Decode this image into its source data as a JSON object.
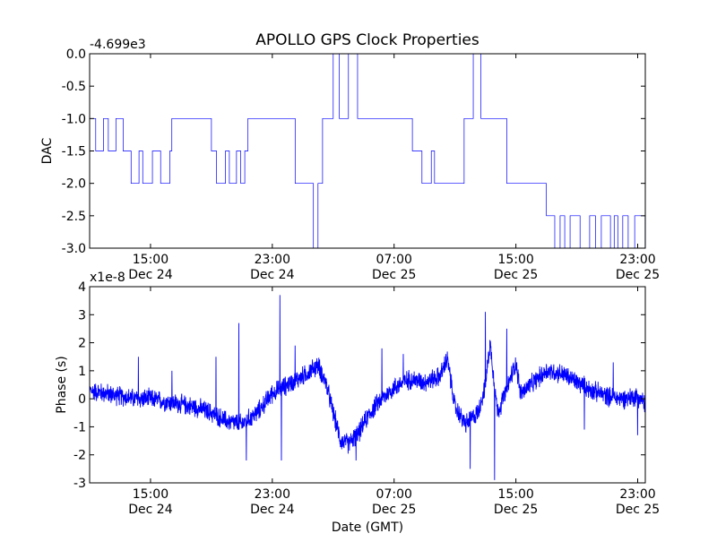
{
  "figure": {
    "title": "APOLLO GPS Clock Properties",
    "xlabel": "Date (GMT)"
  },
  "colors": {
    "series": "#0000ff",
    "axes": "#000000",
    "background": "#ffffff"
  },
  "chart_data": [
    {
      "type": "line",
      "ylabel": "DAC",
      "offset_text": "-4.699e3",
      "ylim": [
        -3.0,
        0.0
      ],
      "yticks": [
        "0.0",
        "-0.5",
        "-1.0",
        "-1.5",
        "-2.0",
        "-2.5",
        "-3.0"
      ],
      "xlim_hours": [
        11.0,
        47.5
      ],
      "xticks": [
        {
          "time": "15:00",
          "date": "Dec 24"
        },
        {
          "time": "23:00",
          "date": "Dec 24"
        },
        {
          "time": "07:00",
          "date": "Dec 25"
        },
        {
          "time": "15:00",
          "date": "Dec 25"
        },
        {
          "time": "23:00",
          "date": "Dec 25"
        }
      ],
      "series": [
        {
          "segments": [
            {
              "from": 11.0,
              "to": 11.4,
              "level": -1.0
            },
            {
              "from": 11.4,
              "to": 13.2,
              "level": -1.5,
              "toggle": -1.0
            },
            {
              "from": 13.2,
              "to": 16.4,
              "level": -1.5,
              "toggle": -2.0
            },
            {
              "from": 16.4,
              "to": 19.0,
              "level": -1.0
            },
            {
              "from": 19.0,
              "to": 21.4,
              "level": -1.5,
              "toggle": -2.0
            },
            {
              "from": 21.4,
              "to": 24.5,
              "level": -1.0
            },
            {
              "from": 24.5,
              "to": 25.7,
              "level": -2.0
            },
            {
              "from": 25.7,
              "to": 26.0,
              "level": -3.0
            },
            {
              "from": 26.0,
              "to": 26.3,
              "level": -2.0
            },
            {
              "from": 26.3,
              "to": 27.0,
              "level": -1.0
            },
            {
              "from": 27.0,
              "to": 27.4,
              "level": 0.0
            },
            {
              "from": 27.4,
              "to": 28.0,
              "level": -1.0
            },
            {
              "from": 28.0,
              "to": 28.6,
              "level": 0.0
            },
            {
              "from": 28.6,
              "to": 32.2,
              "level": -1.0
            },
            {
              "from": 32.2,
              "to": 34.0,
              "level": -1.5,
              "toggle": -2.0
            },
            {
              "from": 34.0,
              "to": 35.6,
              "level": -2.0
            },
            {
              "from": 35.6,
              "to": 36.2,
              "level": -1.0
            },
            {
              "from": 36.2,
              "to": 36.7,
              "level": 0.0
            },
            {
              "from": 36.7,
              "to": 38.4,
              "level": -1.0
            },
            {
              "from": 38.4,
              "to": 41.0,
              "level": -2.0
            },
            {
              "from": 41.0,
              "to": 47.5,
              "level": -2.5,
              "toggle": -3.0
            }
          ]
        }
      ]
    },
    {
      "type": "line",
      "ylabel": "Phase (s)",
      "offset_text": "x1e-8",
      "ylim": [
        -3,
        4
      ],
      "yticks": [
        "4",
        "3",
        "2",
        "1",
        "0",
        "-1",
        "-2",
        "-3"
      ],
      "xlim_hours": [
        11.0,
        47.5
      ],
      "xticks": [
        {
          "time": "15:00",
          "date": "Dec 24"
        },
        {
          "time": "23:00",
          "date": "Dec 24"
        },
        {
          "time": "07:00",
          "date": "Dec 25"
        },
        {
          "time": "15:00",
          "date": "Dec 25"
        },
        {
          "time": "23:00",
          "date": "Dec 25"
        }
      ],
      "series": [
        {
          "trend": [
            [
              11.0,
              0.3
            ],
            [
              12.0,
              0.2
            ],
            [
              13.0,
              0.1
            ],
            [
              14.0,
              0.0
            ],
            [
              15.0,
              0.0
            ],
            [
              16.0,
              -0.1
            ],
            [
              17.0,
              -0.2
            ],
            [
              18.0,
              -0.3
            ],
            [
              19.0,
              -0.5
            ],
            [
              20.0,
              -0.8
            ],
            [
              21.0,
              -0.9
            ],
            [
              22.0,
              -0.5
            ],
            [
              23.0,
              0.2
            ],
            [
              24.0,
              0.5
            ],
            [
              25.0,
              0.8
            ],
            [
              25.5,
              1.0
            ],
            [
              26.0,
              1.2
            ],
            [
              26.5,
              0.6
            ],
            [
              27.0,
              -0.5
            ],
            [
              27.5,
              -1.5
            ],
            [
              28.0,
              -1.6
            ],
            [
              28.7,
              -1.2
            ],
            [
              29.3,
              -0.6
            ],
            [
              30.0,
              -0.1
            ],
            [
              31.0,
              0.4
            ],
            [
              32.0,
              0.7
            ],
            [
              33.0,
              0.6
            ],
            [
              34.0,
              0.8
            ],
            [
              34.5,
              1.4
            ],
            [
              35.0,
              -0.3
            ],
            [
              35.7,
              -0.9
            ],
            [
              36.5,
              -0.5
            ],
            [
              37.0,
              0.5
            ],
            [
              37.3,
              2.0
            ],
            [
              37.8,
              -0.5
            ],
            [
              38.3,
              0.2
            ],
            [
              39.0,
              1.3
            ],
            [
              39.3,
              0.2
            ],
            [
              40.0,
              0.5
            ],
            [
              41.0,
              1.0
            ],
            [
              42.0,
              0.9
            ],
            [
              43.0,
              0.6
            ],
            [
              44.0,
              0.3
            ],
            [
              45.0,
              0.1
            ],
            [
              46.0,
              0.0
            ],
            [
              47.0,
              0.1
            ],
            [
              47.5,
              -0.2
            ]
          ],
          "noise": 0.35,
          "spikes": [
            [
              14.2,
              1.5
            ],
            [
              16.4,
              1.0
            ],
            [
              19.3,
              1.5
            ],
            [
              20.8,
              2.7
            ],
            [
              21.3,
              -2.2
            ],
            [
              23.5,
              3.7
            ],
            [
              23.6,
              -2.2
            ],
            [
              24.5,
              1.9
            ],
            [
              28.5,
              -2.2
            ],
            [
              30.2,
              1.8
            ],
            [
              31.6,
              1.6
            ],
            [
              34.4,
              1.6
            ],
            [
              36.0,
              -2.5
            ],
            [
              37.0,
              3.1
            ],
            [
              37.6,
              -2.9
            ],
            [
              38.4,
              2.5
            ],
            [
              43.5,
              -1.1
            ],
            [
              45.4,
              1.3
            ],
            [
              47.0,
              -1.3
            ]
          ]
        }
      ]
    }
  ]
}
